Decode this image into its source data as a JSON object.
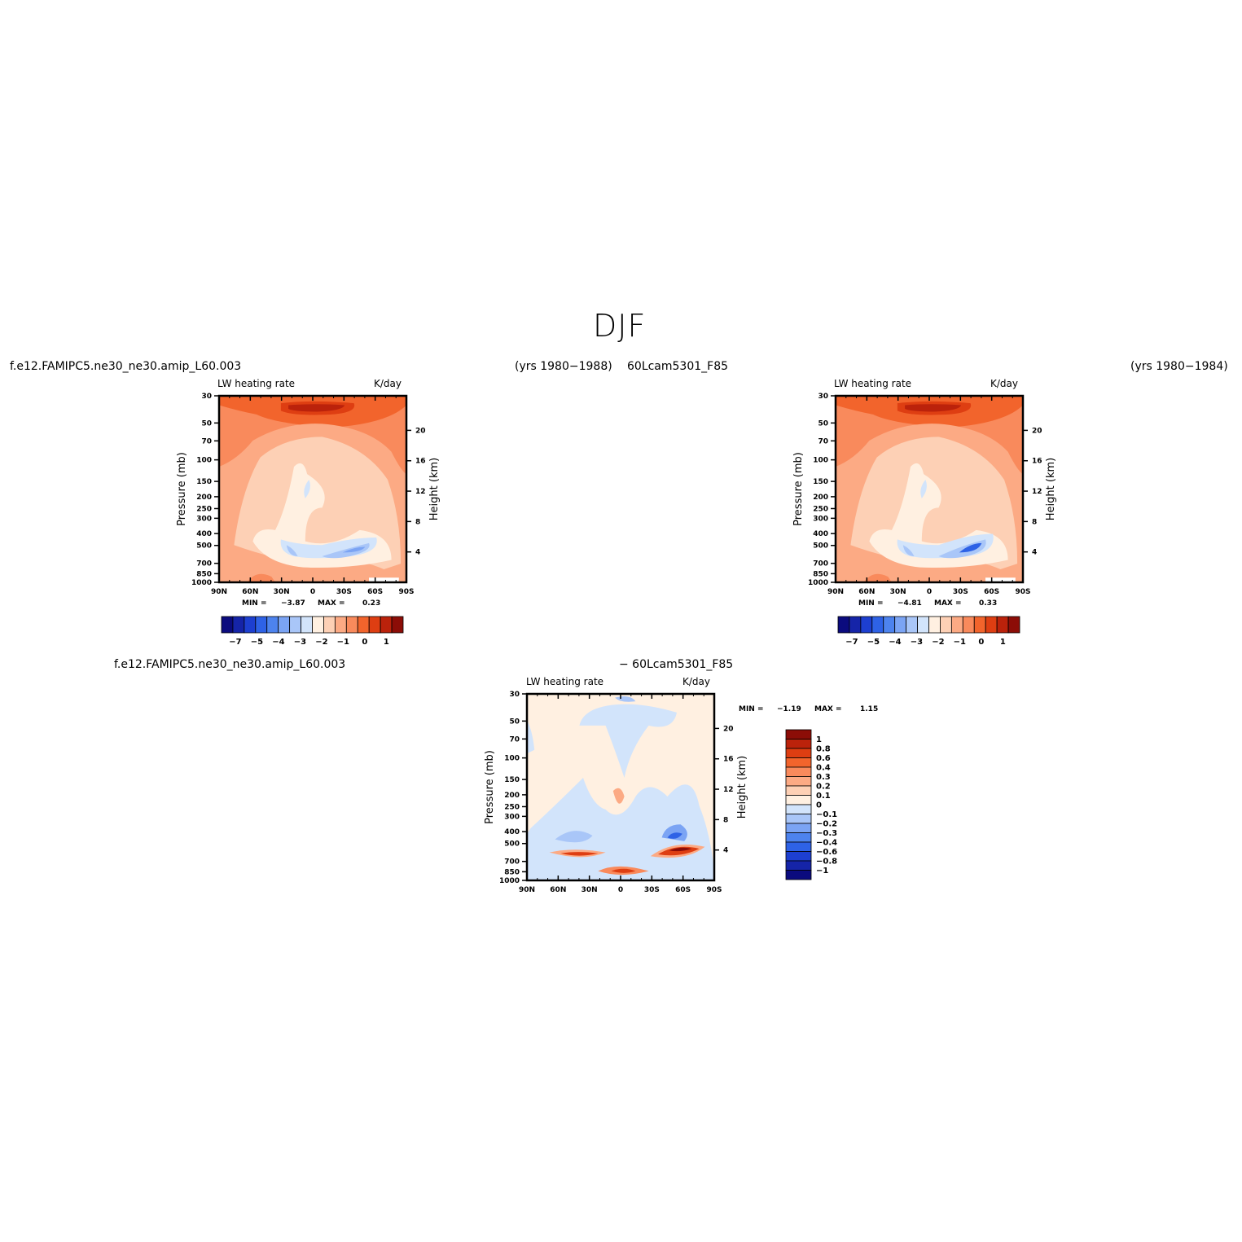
{
  "page": {
    "title": "DJF"
  },
  "top": {
    "case_label": "f.e12.FAMIPC5.ne30_ne30.amip_L60.003",
    "years_left": "(yrs 1980−1988)",
    "control_label": "60Lcam5301_F85",
    "years_right": "(yrs 1980−1984)"
  },
  "diff": {
    "case_label": "f.e12.FAMIPC5.ne30_ne30.amip_L60.003",
    "control_label": "− 60Lcam5301_F85"
  },
  "colors": {
    "blue_scale": [
      "#0b0b7e",
      "#1524a8",
      "#1d3fd0",
      "#2e62e6",
      "#4d83ee",
      "#7ba4f4",
      "#a9c6f8",
      "#d2e4fb"
    ],
    "red_scale": [
      "#fff0e1",
      "#fdd0b5",
      "#fcaa84",
      "#f98a5c",
      "#f2642c",
      "#de3e12",
      "#bb220b",
      "#8c0d07"
    ]
  },
  "chart_data": [
    {
      "type": "heatmap",
      "panel": "top-left",
      "title": "LW heating rate",
      "units": "K/day",
      "ylabel": "Pressure (mb)",
      "y2label": "Height (km)",
      "x_ticks": [
        "90N",
        "60N",
        "30N",
        "0",
        "30S",
        "60S",
        "90S"
      ],
      "y_ticks": [
        "30",
        "50",
        "70",
        "100",
        "150",
        "200",
        "250",
        "300",
        "400",
        "500",
        "700",
        "850",
        "1000"
      ],
      "y2_ticks": [
        "20",
        "16",
        "12",
        "8",
        "4"
      ],
      "min_label": "MIN =",
      "min": "−3.87",
      "max_label": "MAX =",
      "max": "0.23",
      "colorbar_ticks": [
        "−7",
        "−5",
        "−4",
        "−3",
        "−2",
        "−1",
        "0",
        "1"
      ]
    },
    {
      "type": "heatmap",
      "panel": "top-right",
      "title": "LW heating rate",
      "units": "K/day",
      "ylabel": "Pressure (mb)",
      "y2label": "Height (km)",
      "x_ticks": [
        "90N",
        "60N",
        "30N",
        "0",
        "30S",
        "60S",
        "90S"
      ],
      "y_ticks": [
        "30",
        "50",
        "70",
        "100",
        "150",
        "200",
        "250",
        "300",
        "400",
        "500",
        "700",
        "850",
        "1000"
      ],
      "y2_ticks": [
        "20",
        "16",
        "12",
        "8",
        "4"
      ],
      "min_label": "MIN =",
      "min": "−4.81",
      "max_label": "MAX =",
      "max": "0.33",
      "colorbar_ticks": [
        "−7",
        "−5",
        "−4",
        "−3",
        "−2",
        "−1",
        "0",
        "1"
      ]
    },
    {
      "type": "heatmap",
      "panel": "difference",
      "title": "LW heating rate",
      "units": "K/day",
      "ylabel": "Pressure (mb)",
      "y2label": "Height (km)",
      "x_ticks": [
        "90N",
        "60N",
        "30N",
        "0",
        "30S",
        "60S",
        "90S"
      ],
      "y_ticks": [
        "30",
        "50",
        "70",
        "100",
        "150",
        "200",
        "250",
        "300",
        "400",
        "500",
        "700",
        "850",
        "1000"
      ],
      "y2_ticks": [
        "20",
        "16",
        "12",
        "8",
        "4"
      ],
      "min_label": "MIN =",
      "min": "−1.19",
      "max_label": "MAX =",
      "max": "1.15",
      "colorbar_ticks": [
        "1",
        "0.8",
        "0.6",
        "0.4",
        "0.3",
        "0.2",
        "0.1",
        "0",
        "−0.1",
        "−0.2",
        "−0.3",
        "−0.4",
        "−0.6",
        "−0.8",
        "−1"
      ]
    }
  ]
}
